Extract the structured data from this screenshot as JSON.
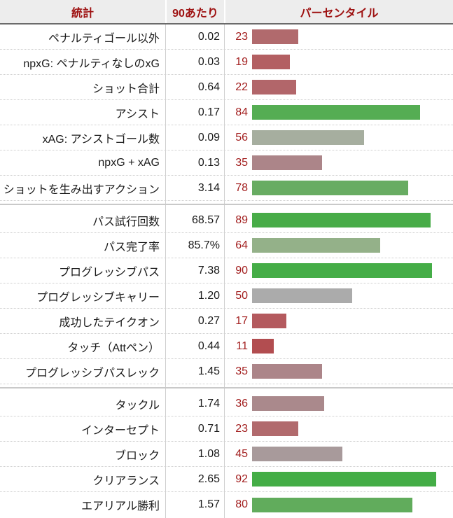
{
  "colors": {
    "header_bg": "#ededed",
    "header_text": "#9e1111",
    "header_border": "#6b6b6b",
    "percentile_number": "#a32020",
    "row_divider": "#cccccc",
    "section_line": "#c9c9c9"
  },
  "chart_data": {
    "type": "bar",
    "orientation": "horizontal",
    "columns": [
      "統計",
      "90あたり",
      "パーセンタイル"
    ],
    "value_range": [
      0,
      100
    ],
    "groups": [
      [
        {
          "label": "ペナルティゴール以外",
          "per90": "0.02",
          "percentile": 23,
          "bar_color": "#b16a6d"
        },
        {
          "label": "npxG: ペナルティなしのxG",
          "per90": "0.03",
          "percentile": 19,
          "bar_color": "#b35f62"
        },
        {
          "label": "ショット合計",
          "per90": "0.64",
          "percentile": 22,
          "bar_color": "#b2666a"
        },
        {
          "label": "アシスト",
          "per90": "0.17",
          "percentile": 84,
          "bar_color": "#55ad53"
        },
        {
          "label": "xAG: アシストゴール数",
          "per90": "0.09",
          "percentile": 56,
          "bar_color": "#a6ae9f"
        },
        {
          "label": "npxG + xAG",
          "per90": "0.13",
          "percentile": 35,
          "bar_color": "#ac8589"
        },
        {
          "label": "ショットを生み出すアクション",
          "per90": "3.14",
          "percentile": 78,
          "bar_color": "#68ac62"
        }
      ],
      [
        {
          "label": "パス試行回数",
          "per90": "68.57",
          "percentile": 89,
          "bar_color": "#48ac48"
        },
        {
          "label": "パス完了率",
          "per90": "85.7%",
          "percentile": 64,
          "bar_color": "#94b189"
        },
        {
          "label": "プログレッシブパス",
          "per90": "7.38",
          "percentile": 90,
          "bar_color": "#45ad47"
        },
        {
          "label": "プログレッシブキャリー",
          "per90": "1.20",
          "percentile": 50,
          "bar_color": "#ababab"
        },
        {
          "label": "成功したテイクオン",
          "per90": "0.27",
          "percentile": 17,
          "bar_color": "#b45a5e"
        },
        {
          "label": "タッチ（Attペン）",
          "per90": "0.44",
          "percentile": 11,
          "bar_color": "#b24d50"
        },
        {
          "label": "プログレッシブパスレック",
          "per90": "1.45",
          "percentile": 35,
          "bar_color": "#ac8589"
        }
      ],
      [
        {
          "label": "タックル",
          "per90": "1.74",
          "percentile": 36,
          "bar_color": "#aa898c"
        },
        {
          "label": "インターセプト",
          "per90": "0.71",
          "percentile": 23,
          "bar_color": "#b16a6d"
        },
        {
          "label": "ブロック",
          "per90": "1.08",
          "percentile": 45,
          "bar_color": "#a89a9b"
        },
        {
          "label": "クリアランス",
          "per90": "2.65",
          "percentile": 92,
          "bar_color": "#44ad46"
        },
        {
          "label": "エアリアル勝利",
          "per90": "1.57",
          "percentile": 80,
          "bar_color": "#61ac5c"
        }
      ]
    ]
  }
}
